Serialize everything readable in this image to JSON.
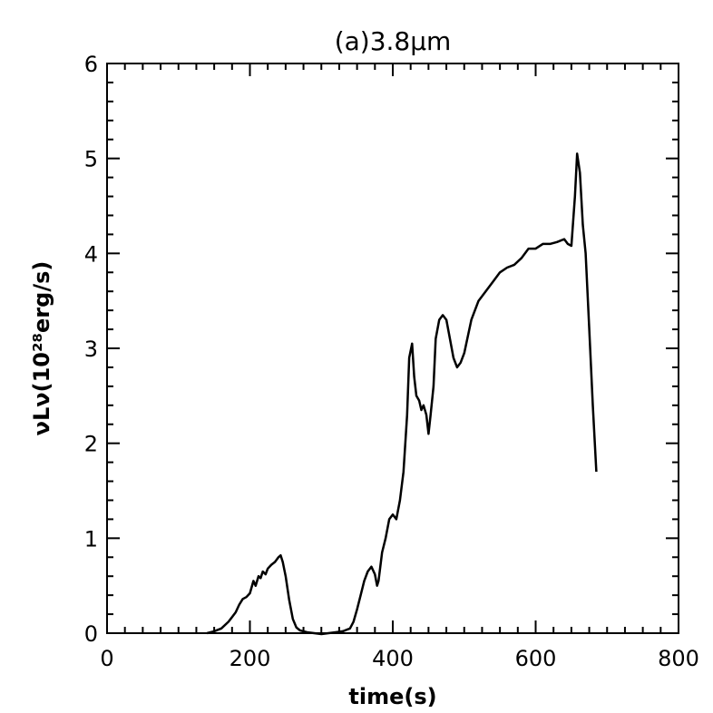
{
  "chart_data": {
    "type": "line",
    "title": "(a)3.8μm",
    "xlabel": "time(s)",
    "ylabel": "νLν(10²⁸erg/s)",
    "xlim": [
      0,
      800
    ],
    "ylim": [
      0,
      6
    ],
    "xticks": [
      0,
      200,
      400,
      600,
      800
    ],
    "xtick_labels": [
      "0",
      "200",
      "400",
      "600",
      "800"
    ],
    "yticks": [
      0,
      1,
      2,
      3,
      4,
      5,
      6
    ],
    "ytick_labels": [
      "0",
      "1",
      "2",
      "3",
      "4",
      "5",
      "6"
    ],
    "grid": false,
    "series": [
      {
        "color": "#000000",
        "x": [
          140,
          150,
          160,
          170,
          180,
          185,
          190,
          195,
          200,
          205,
          208,
          212,
          215,
          218,
          222,
          225,
          230,
          235,
          240,
          243,
          246,
          250,
          255,
          260,
          265,
          270,
          280,
          290,
          300,
          310,
          320,
          330,
          340,
          345,
          350,
          355,
          360,
          365,
          370,
          375,
          378,
          380,
          385,
          390,
          395,
          400,
          405,
          410,
          415,
          420,
          423,
          427,
          430,
          433,
          437,
          440,
          443,
          447,
          450,
          453,
          457,
          460,
          465,
          470,
          475,
          480,
          485,
          490,
          495,
          500,
          510,
          520,
          530,
          540,
          550,
          560,
          570,
          580,
          590,
          600,
          610,
          620,
          630,
          640,
          645,
          650,
          655,
          658,
          662,
          666,
          670,
          675,
          680,
          685
        ],
        "y": [
          0.0,
          0.02,
          0.05,
          0.12,
          0.22,
          0.3,
          0.36,
          0.38,
          0.42,
          0.55,
          0.5,
          0.6,
          0.58,
          0.65,
          0.62,
          0.68,
          0.72,
          0.75,
          0.8,
          0.82,
          0.75,
          0.6,
          0.35,
          0.15,
          0.06,
          0.03,
          0.01,
          0.0,
          -0.01,
          0.0,
          0.01,
          0.02,
          0.05,
          0.12,
          0.25,
          0.4,
          0.55,
          0.65,
          0.7,
          0.62,
          0.5,
          0.55,
          0.85,
          1.0,
          1.2,
          1.25,
          1.2,
          1.4,
          1.7,
          2.3,
          2.9,
          3.05,
          2.7,
          2.5,
          2.45,
          2.35,
          2.4,
          2.3,
          2.1,
          2.3,
          2.6,
          3.1,
          3.3,
          3.35,
          3.3,
          3.1,
          2.9,
          2.8,
          2.85,
          2.95,
          3.3,
          3.5,
          3.6,
          3.7,
          3.8,
          3.85,
          3.88,
          3.95,
          4.05,
          4.05,
          4.1,
          4.1,
          4.12,
          4.15,
          4.1,
          4.08,
          4.6,
          5.05,
          4.85,
          4.3,
          4.0,
          3.2,
          2.4,
          1.7
        ]
      }
    ]
  }
}
